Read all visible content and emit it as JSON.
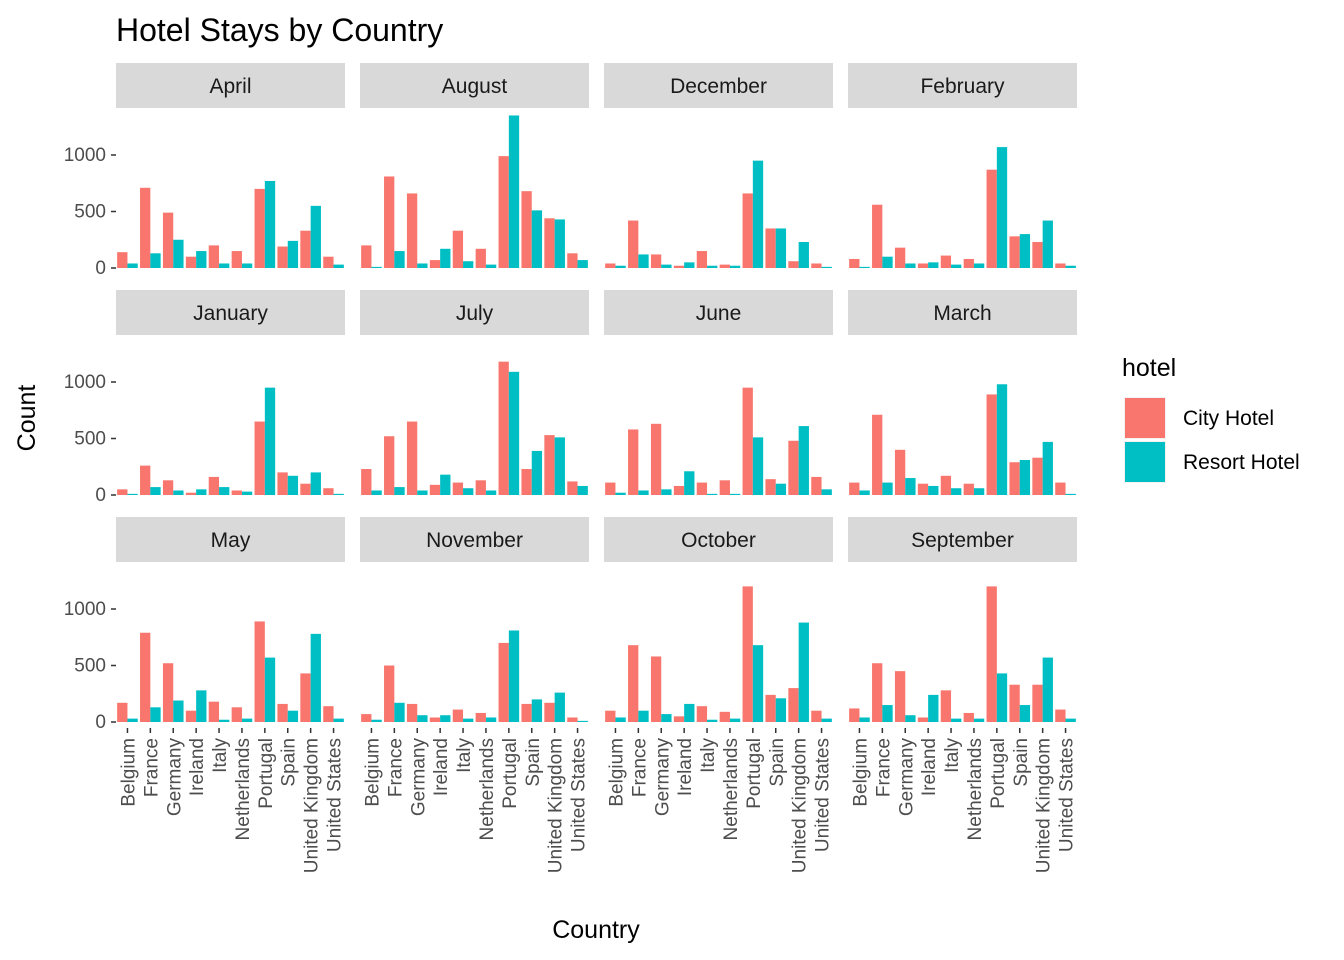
{
  "chart_data": {
    "type": "bar",
    "title": "Hotel Stays by Country",
    "xlabel": "Country",
    "ylabel": "Count",
    "ylim": [
      0,
      1350
    ],
    "yticks": [
      0,
      500,
      1000
    ],
    "categories": [
      "Belgium",
      "France",
      "Germany",
      "Ireland",
      "Italy",
      "Netherlands",
      "Portugal",
      "Spain",
      "United Kingdom",
      "United States"
    ],
    "legend": {
      "title": "hotel",
      "position": "right",
      "entries": [
        {
          "name": "City Hotel",
          "color": "#F8766D"
        },
        {
          "name": "Resort Hotel",
          "color": "#00BFC4"
        }
      ]
    },
    "panels": [
      {
        "month": "April",
        "series": [
          {
            "name": "City Hotel",
            "values": [
              140,
              710,
              490,
              100,
              200,
              150,
              700,
              190,
              330,
              100
            ]
          },
          {
            "name": "Resort Hotel",
            "values": [
              40,
              130,
              250,
              150,
              40,
              40,
              770,
              240,
              550,
              30
            ]
          }
        ]
      },
      {
        "month": "August",
        "series": [
          {
            "name": "City Hotel",
            "values": [
              200,
              810,
              660,
              70,
              330,
              170,
              990,
              680,
              440,
              130
            ]
          },
          {
            "name": "Resort Hotel",
            "values": [
              10,
              150,
              40,
              170,
              60,
              30,
              1350,
              510,
              430,
              70
            ]
          }
        ]
      },
      {
        "month": "December",
        "series": [
          {
            "name": "City Hotel",
            "values": [
              40,
              420,
              120,
              20,
              150,
              30,
              660,
              350,
              60,
              40
            ]
          },
          {
            "name": "Resort Hotel",
            "values": [
              20,
              120,
              30,
              50,
              20,
              20,
              950,
              350,
              230,
              10
            ]
          }
        ]
      },
      {
        "month": "February",
        "series": [
          {
            "name": "City Hotel",
            "values": [
              80,
              560,
              180,
              40,
              110,
              80,
              870,
              280,
              230,
              40
            ]
          },
          {
            "name": "Resort Hotel",
            "values": [
              10,
              100,
              40,
              50,
              30,
              40,
              1070,
              300,
              420,
              20
            ]
          }
        ]
      },
      {
        "month": "January",
        "series": [
          {
            "name": "City Hotel",
            "values": [
              50,
              260,
              130,
              20,
              160,
              40,
              650,
              200,
              100,
              60
            ]
          },
          {
            "name": "Resort Hotel",
            "values": [
              10,
              70,
              40,
              50,
              70,
              30,
              950,
              170,
              200,
              10
            ]
          }
        ]
      },
      {
        "month": "July",
        "series": [
          {
            "name": "City Hotel",
            "values": [
              230,
              520,
              650,
              90,
              110,
              130,
              1180,
              230,
              530,
              120
            ]
          },
          {
            "name": "Resort Hotel",
            "values": [
              40,
              70,
              40,
              180,
              60,
              40,
              1090,
              390,
              510,
              80
            ]
          }
        ]
      },
      {
        "month": "June",
        "series": [
          {
            "name": "City Hotel",
            "values": [
              110,
              580,
              630,
              80,
              110,
              130,
              950,
              140,
              480,
              160
            ]
          },
          {
            "name": "Resort Hotel",
            "values": [
              20,
              40,
              50,
              210,
              10,
              10,
              510,
              100,
              610,
              50
            ]
          }
        ]
      },
      {
        "month": "March",
        "series": [
          {
            "name": "City Hotel",
            "values": [
              110,
              710,
              400,
              100,
              170,
              100,
              890,
              290,
              330,
              110
            ]
          },
          {
            "name": "Resort Hotel",
            "values": [
              40,
              110,
              150,
              80,
              60,
              60,
              980,
              310,
              470,
              10
            ]
          }
        ]
      },
      {
        "month": "May",
        "series": [
          {
            "name": "City Hotel",
            "values": [
              170,
              790,
              520,
              100,
              180,
              130,
              890,
              160,
              430,
              140
            ]
          },
          {
            "name": "Resort Hotel",
            "values": [
              30,
              130,
              190,
              280,
              20,
              30,
              570,
              100,
              780,
              30
            ]
          }
        ]
      },
      {
        "month": "November",
        "series": [
          {
            "name": "City Hotel",
            "values": [
              70,
              500,
              160,
              40,
              110,
              80,
              700,
              160,
              170,
              40
            ]
          },
          {
            "name": "Resort Hotel",
            "values": [
              20,
              170,
              60,
              60,
              30,
              40,
              810,
              200,
              260,
              10
            ]
          }
        ]
      },
      {
        "month": "October",
        "series": [
          {
            "name": "City Hotel",
            "values": [
              100,
              680,
              580,
              50,
              140,
              90,
              1200,
              240,
              300,
              100
            ]
          },
          {
            "name": "Resort Hotel",
            "values": [
              40,
              100,
              70,
              160,
              20,
              30,
              680,
              210,
              880,
              30
            ]
          }
        ]
      },
      {
        "month": "September",
        "series": [
          {
            "name": "City Hotel",
            "values": [
              120,
              520,
              450,
              40,
              280,
              80,
              1200,
              330,
              330,
              110
            ]
          },
          {
            "name": "Resort Hotel",
            "values": [
              40,
              150,
              60,
              240,
              30,
              30,
              430,
              150,
              570,
              30
            ]
          }
        ]
      }
    ]
  }
}
